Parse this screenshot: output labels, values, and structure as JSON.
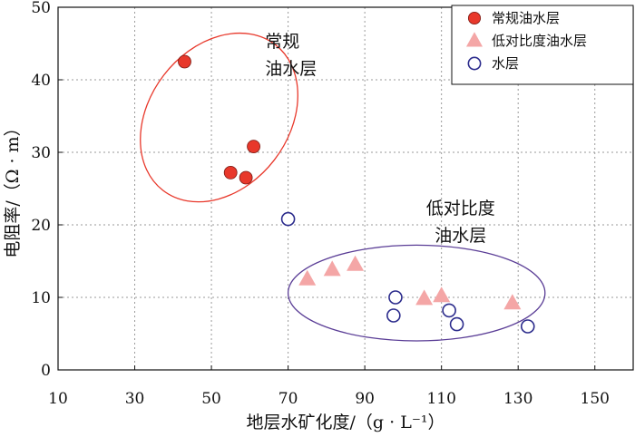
{
  "chart_data": {
    "type": "scatter",
    "xlabel": "地层水矿化度/（g · L⁻¹）",
    "ylabel": "电阻率/（Ω · m）",
    "xlim": [
      10,
      160
    ],
    "ylim": [
      0,
      50
    ],
    "xticks": [
      10,
      30,
      50,
      70,
      90,
      110,
      130,
      150
    ],
    "yticks": [
      0,
      10,
      20,
      30,
      40,
      50
    ],
    "grid": true,
    "legend_position": "top-right",
    "series": [
      {
        "name": "常规油水层",
        "marker": "filled-circle",
        "color": "#e8382b",
        "points": [
          [
            43,
            42.5
          ],
          [
            55,
            27.2
          ],
          [
            59,
            26.5
          ],
          [
            61,
            30.8
          ]
        ]
      },
      {
        "name": "低对比度油水层",
        "marker": "triangle",
        "color": "#f4a6a6",
        "points": [
          [
            75,
            12.5
          ],
          [
            81.5,
            13.8
          ],
          [
            87.5,
            14.5
          ],
          [
            105.5,
            9.8
          ],
          [
            110,
            10.2
          ],
          [
            128.5,
            9.2
          ]
        ]
      },
      {
        "name": "水层",
        "marker": "open-circle",
        "color": "#2b2b8c",
        "points": [
          [
            70,
            20.8
          ],
          [
            97.5,
            7.5
          ],
          [
            98,
            10
          ],
          [
            112,
            8.2
          ],
          [
            114,
            6.3
          ],
          [
            132.5,
            6
          ]
        ]
      }
    ],
    "annotations": [
      {
        "lines": [
          "常规",
          "油水层"
        ],
        "x": 64,
        "y": 44.5,
        "align": "start"
      },
      {
        "lines": [
          "低对比度",
          "油水层"
        ],
        "x": 115,
        "y": 21.5,
        "align": "middle"
      }
    ],
    "ellipses": [
      {
        "series": "常规油水层",
        "center": [
          52,
          34.8
        ],
        "rx": 24,
        "ry": 9.6,
        "angle": -0.915,
        "color": "#e8382b"
      },
      {
        "series": "低对比度油水层",
        "center": [
          103.5,
          10.6
        ],
        "rx": 33.5,
        "ry": 6.6,
        "angle": 0,
        "color": "#5a3d96"
      }
    ]
  }
}
